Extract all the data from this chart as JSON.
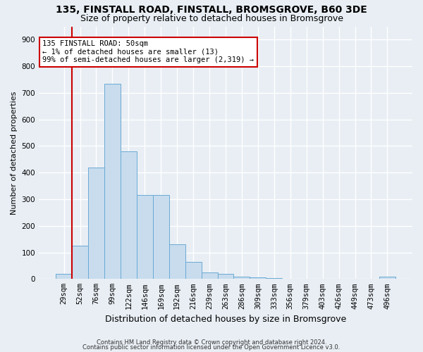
{
  "title1": "135, FINSTALL ROAD, FINSTALL, BROMSGROVE, B60 3DE",
  "title2": "Size of property relative to detached houses in Bromsgrove",
  "xlabel": "Distribution of detached houses by size in Bromsgrove",
  "ylabel": "Number of detached properties",
  "categories": [
    "29sqm",
    "52sqm",
    "76sqm",
    "99sqm",
    "122sqm",
    "146sqm",
    "169sqm",
    "192sqm",
    "216sqm",
    "239sqm",
    "263sqm",
    "286sqm",
    "309sqm",
    "333sqm",
    "356sqm",
    "379sqm",
    "403sqm",
    "426sqm",
    "449sqm",
    "473sqm",
    "496sqm"
  ],
  "values": [
    20,
    125,
    420,
    735,
    480,
    315,
    315,
    130,
    65,
    25,
    20,
    10,
    5,
    3,
    2,
    2,
    1,
    1,
    0,
    0,
    8
  ],
  "bar_color": "#c8dcee",
  "bar_edge_color": "#6aaad4",
  "vline_color": "#cc0000",
  "vline_x": 0.5,
  "annotation_text": "135 FINSTALL ROAD: 50sqm\n← 1% of detached houses are smaller (13)\n99% of semi-detached houses are larger (2,319) →",
  "annotation_box_facecolor": "#ffffff",
  "annotation_box_edgecolor": "#cc0000",
  "ylim_max": 950,
  "yticks": [
    0,
    100,
    200,
    300,
    400,
    500,
    600,
    700,
    800,
    900
  ],
  "footer1": "Contains HM Land Registry data © Crown copyright and database right 2024.",
  "footer2": "Contains public sector information licensed under the Open Government Licence v3.0.",
  "bg_color": "#e8eef4",
  "plot_bg_color": "#e8eef4",
  "grid_color": "#ffffff",
  "title1_fontsize": 10,
  "title2_fontsize": 9,
  "xlabel_fontsize": 9,
  "ylabel_fontsize": 8,
  "tick_fontsize": 7.5,
  "annot_fontsize": 7.5,
  "footer_fontsize": 6
}
